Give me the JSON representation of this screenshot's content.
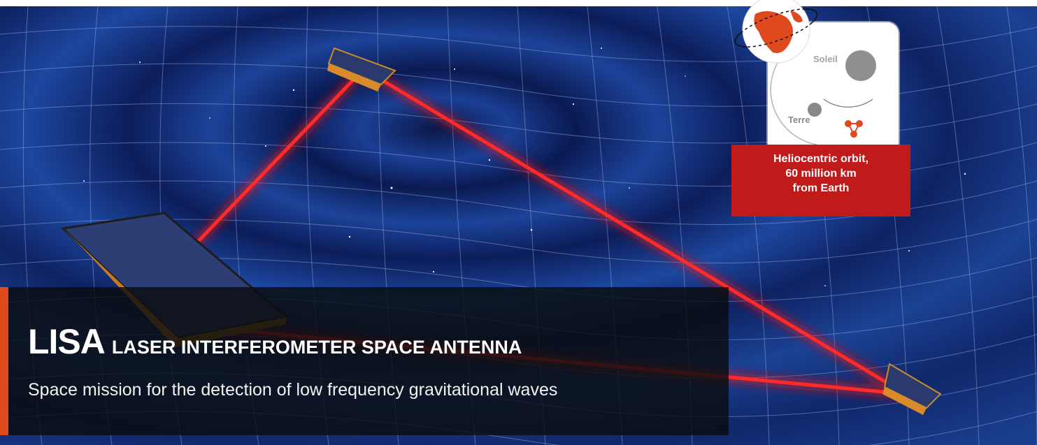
{
  "title": {
    "acronym": "LISA",
    "full_name": "LASER INTERFEROMETER SPACE ANTENNA"
  },
  "subtitle": "Space mission for the detection of low frequency gravitational waves",
  "inset": {
    "sun_label": "Soleil",
    "earth_label": "Terre",
    "orbit_caption_lines": [
      "Heliocentric orbit,",
      "60 million km",
      "from Earth"
    ]
  },
  "colors": {
    "accent": "#e0491e",
    "laser": "#e01010",
    "caption_box": "#c11a1a",
    "space": "#0f2464"
  },
  "icons": [
    "spacecraft-icon",
    "earth-globe-icon",
    "sun-icon",
    "constellation-icon"
  ]
}
